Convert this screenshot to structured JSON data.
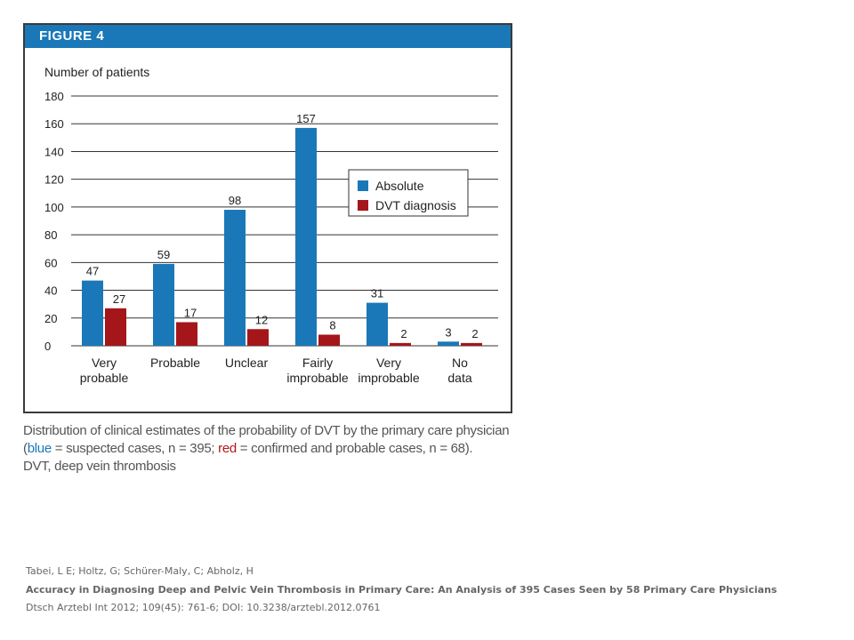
{
  "figure_label": "FIGURE 4",
  "chart_data": {
    "type": "bar",
    "ylabel": "Number of patients",
    "ylim": [
      0,
      180
    ],
    "yticks": [
      0,
      20,
      40,
      60,
      80,
      100,
      120,
      140,
      160,
      180
    ],
    "grid": true,
    "legend_position": "right",
    "categories": [
      [
        "Very",
        "probable"
      ],
      [
        "Probable"
      ],
      [
        "Unclear"
      ],
      [
        "Fairly",
        "improbable"
      ],
      [
        "Very",
        "improbable"
      ],
      [
        "No",
        "data"
      ]
    ],
    "series": [
      {
        "name": "Absolute",
        "color": "#1a78b8",
        "values": [
          47,
          59,
          98,
          157,
          31,
          3
        ]
      },
      {
        "name": "DVT diagnosis",
        "color": "#a4161a",
        "values": [
          27,
          17,
          12,
          8,
          2,
          2
        ]
      }
    ]
  },
  "caption": {
    "line1": "Distribution of clinical estimates of the probability of DVT by the primary care physician",
    "line2_open": "(",
    "line2_blue": "blue",
    "line2_mid": " = suspected cases, n = 395; ",
    "line2_red": "red",
    "line2_end": " = confirmed and probable cases, n = 68).",
    "line3": "DVT, deep vein thrombosis"
  },
  "citation": {
    "authors": "Tabei, L E; Holtz, G; Schürer-Maly, C; Abholz, H",
    "title": "Accuracy in Diagnosing Deep and Pelvic Vein Thrombosis in Primary Care: An Analysis of 395 Cases Seen by 58 Primary Care Physicians",
    "journal": "Dtsch Arztebl Int 2012; 109(45): 761-6; DOI: 10.3238/arztebl.2012.0761"
  }
}
